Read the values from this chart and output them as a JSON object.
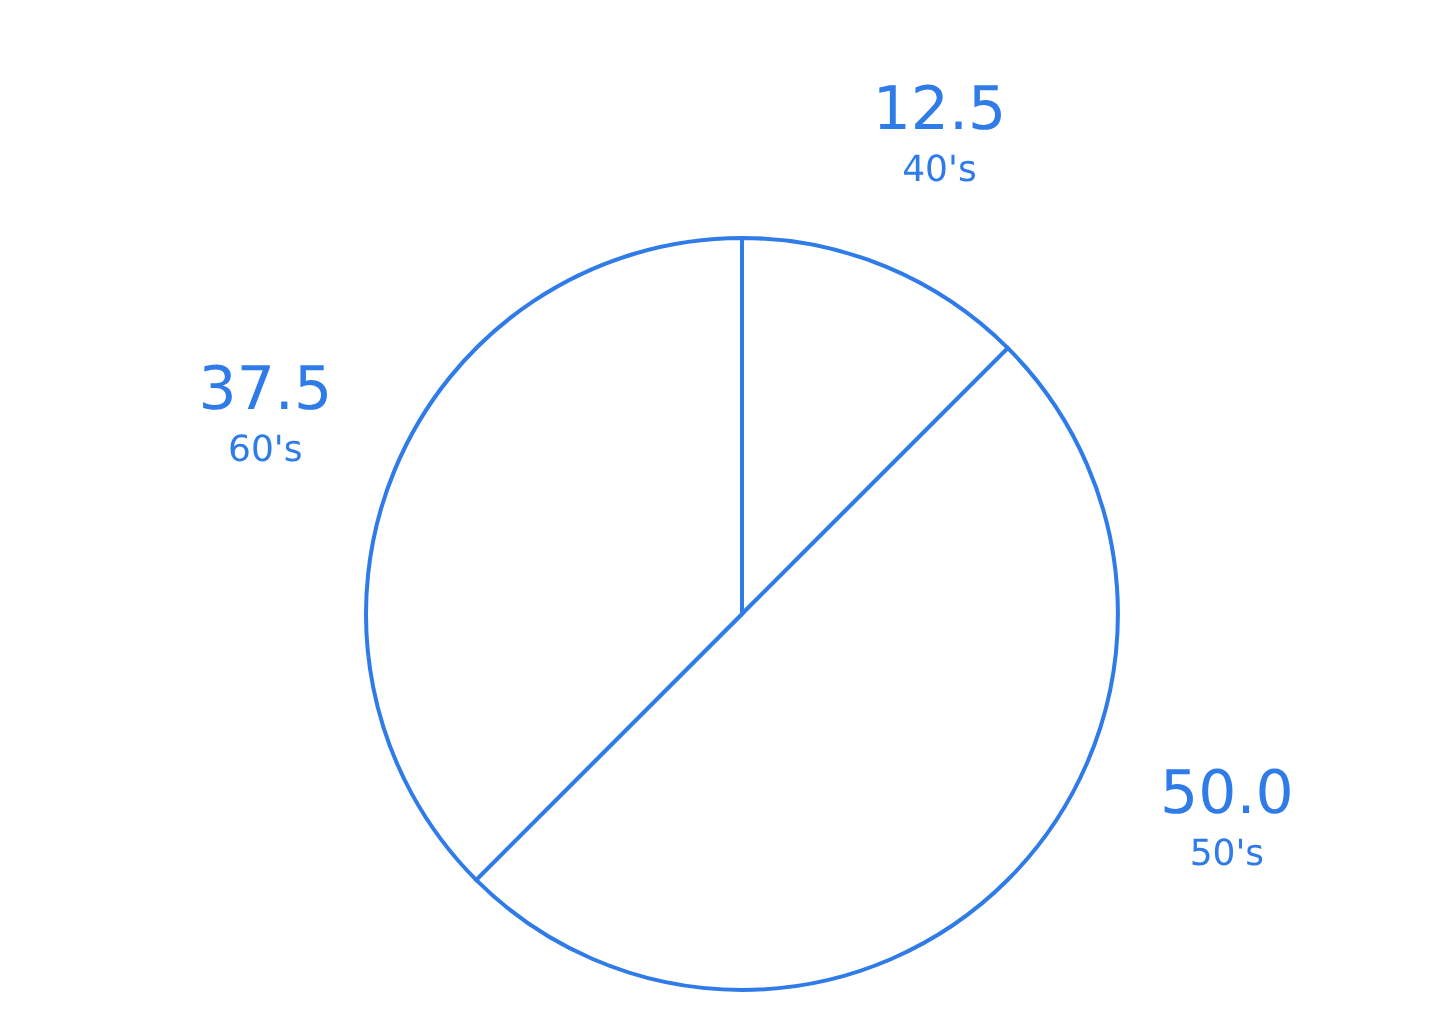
{
  "chart_data": {
    "type": "pie",
    "categories": [
      "40's",
      "50's",
      "60's"
    ],
    "values": [
      12.5,
      50,
      37.5
    ],
    "value_labels": [
      "12.5",
      "50.0",
      "37.5"
    ],
    "colors": [
      "#ffffff",
      "#ffffff",
      "#ffffff"
    ]
  }
}
